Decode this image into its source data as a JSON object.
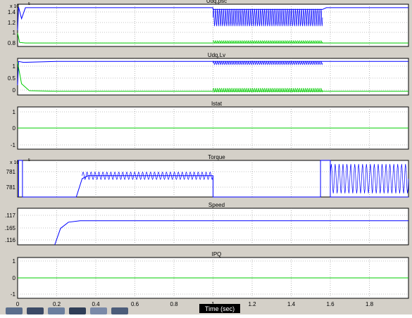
{
  "window": {
    "background": "#d4d0c8",
    "time_label": "Time (sec)"
  },
  "colors": {
    "blue": "#0000ff",
    "green": "#00cc00",
    "grid": "#8c8c8c",
    "axes_bg": "#ffffff"
  },
  "chart_data": [
    {
      "type": "line",
      "title": "Udq,psc",
      "exponent_label": "x 10",
      "exponent_power": "5",
      "yticks": [
        "0.8",
        "1",
        "1.2",
        "1.4"
      ],
      "ylim": [
        0.72,
        1.45
      ],
      "xlim": [
        0,
        2
      ],
      "series": [
        {
          "color": "#0000ff",
          "description_points": [
            [
              0,
              1.0
            ],
            [
              0.005,
              1.4
            ],
            [
              0.02,
              1.2
            ],
            [
              0.04,
              1.39
            ],
            [
              0.999,
              1.39
            ],
            [
              1.0,
              1.36
            ],
            [
              1.56,
              1.36
            ],
            [
              1.58,
              1.39
            ],
            [
              2.0,
              1.39
            ]
          ],
          "oscillation": {
            "from": 1.0,
            "to": 1.56,
            "center": 1.22,
            "amplitude": 0.15,
            "cycles": 56
          }
        },
        {
          "color": "#00cc00",
          "description_points": [
            [
              0,
              0.95
            ],
            [
              0.01,
              0.79
            ],
            [
              0.04,
              0.78
            ],
            [
              2.0,
              0.78
            ]
          ],
          "oscillation": {
            "from": 1.0,
            "to": 1.56,
            "center": 0.8,
            "amplitude": 0.02,
            "cycles": 56
          }
        }
      ]
    },
    {
      "type": "line",
      "title": "Udq,Lv",
      "exponent_label": "",
      "exponent_power": "",
      "yticks": [
        "0",
        "0.5",
        "1"
      ],
      "ylim": [
        -0.12,
        1.08
      ],
      "xlim": [
        0,
        2
      ],
      "series": [
        {
          "color": "#0000ff",
          "description_points": [
            [
              0,
              0.2
            ],
            [
              0.005,
              0.98
            ],
            [
              0.03,
              0.95
            ],
            [
              0.2,
              0.98
            ],
            [
              2.0,
              0.98
            ]
          ],
          "oscillation": {
            "from": 1.0,
            "to": 1.56,
            "center": 0.93,
            "amplitude": 0.05,
            "cycles": 56
          }
        },
        {
          "color": "#00cc00",
          "description_points": [
            [
              0,
              0.95
            ],
            [
              0.02,
              0.25
            ],
            [
              0.06,
              0.02
            ],
            [
              0.2,
              0.0
            ],
            [
              2.0,
              0.0
            ]
          ],
          "oscillation": {
            "from": 1.0,
            "to": 1.56,
            "center": 0.04,
            "amplitude": 0.06,
            "cycles": 56
          }
        }
      ]
    },
    {
      "type": "line",
      "title": "Istat",
      "exponent_label": "",
      "exponent_power": "",
      "yticks": [
        "-1",
        "0",
        "1"
      ],
      "ylim": [
        -1,
        1
      ],
      "xlim": [
        0,
        2
      ],
      "series": [
        {
          "color": "#00cc00",
          "description_points": [
            [
              0,
              0
            ],
            [
              2.0,
              0
            ]
          ]
        }
      ]
    },
    {
      "type": "line",
      "title": "Torque",
      "exponent_label": "x 10",
      "exponent_power": "5",
      "yticks": [
        "781",
        "781"
      ],
      "ylim": [
        0,
        1
      ],
      "xlim": [
        0,
        2
      ],
      "series": [
        {
          "color": "#0000ff",
          "description_points": [
            [
              0.005,
              0.0
            ],
            [
              0.005,
              1.0
            ],
            [
              0.025,
              1.0
            ],
            [
              0.025,
              0.0
            ],
            [
              0.3,
              0.0
            ],
            [
              0.33,
              0.5
            ],
            [
              0.36,
              0.58
            ],
            [
              1.0,
              0.58
            ],
            [
              1.0,
              0.0
            ],
            [
              1.55,
              0.0
            ],
            [
              1.55,
              1.0
            ],
            [
              1.6,
              1.0
            ],
            [
              1.6,
              0.0
            ],
            [
              2.0,
              0.0
            ]
          ],
          "oscillation": {
            "from": 0.33,
            "to": 1.0,
            "center": 0.58,
            "amplitude": 0.1,
            "cycles": 33
          },
          "oscillation2": {
            "from": 1.6,
            "to": 2.0,
            "center": 0.5,
            "amplitude": 0.4,
            "cycles": 20
          }
        }
      ]
    },
    {
      "type": "line",
      "title": "Speed",
      "exponent_label": "",
      "exponent_power": "",
      "yticks": [
        ".117",
        ".165",
        ".116"
      ],
      "ylim": [
        0,
        1
      ],
      "xlim": [
        0,
        2
      ],
      "series": [
        {
          "color": "#0000ff",
          "description_points": [
            [
              0.19,
              0.0
            ],
            [
              0.22,
              0.45
            ],
            [
              0.26,
              0.62
            ],
            [
              0.32,
              0.66
            ],
            [
              2.0,
              0.66
            ]
          ]
        }
      ]
    },
    {
      "type": "line",
      "title": "IPQ",
      "exponent_label": "",
      "exponent_power": "",
      "yticks": [
        "-1",
        "0",
        "1"
      ],
      "ylim": [
        -1,
        1
      ],
      "xlim": [
        0,
        2
      ],
      "xticks": [
        "0",
        "0.2",
        "0.4",
        "0.6",
        "0.8",
        "1",
        "1.2",
        "1.4",
        "1.6",
        "1.8"
      ],
      "series": [
        {
          "color": "#00cc00",
          "description_points": [
            [
              0,
              0
            ],
            [
              2.0,
              0
            ]
          ]
        }
      ]
    }
  ]
}
